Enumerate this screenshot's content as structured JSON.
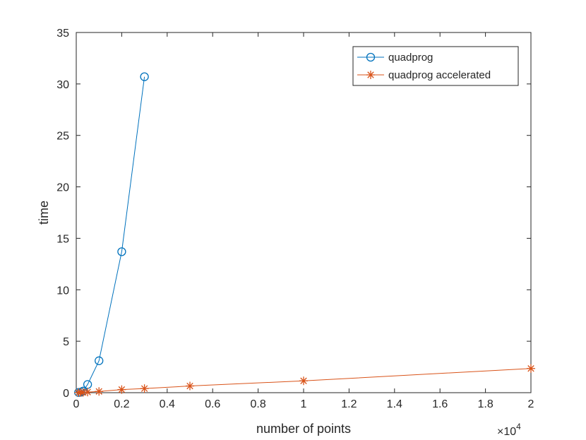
{
  "chart_data": {
    "type": "line",
    "xlabel": "number of points",
    "ylabel": "time",
    "xlim": [
      0,
      20000
    ],
    "ylim": [
      0,
      35
    ],
    "x_exponent_label": "×10",
    "x_exponent_power": "4",
    "x_ticks": [
      0,
      2000,
      4000,
      6000,
      8000,
      10000,
      12000,
      14000,
      16000,
      18000,
      20000
    ],
    "x_tick_labels": [
      "0",
      "0.2",
      "0.4",
      "0.6",
      "0.8",
      "1",
      "1.2",
      "1.4",
      "1.6",
      "1.8",
      "2"
    ],
    "y_ticks": [
      0,
      5,
      10,
      15,
      20,
      25,
      30,
      35
    ],
    "y_tick_labels": [
      "0",
      "5",
      "10",
      "15",
      "20",
      "25",
      "30",
      "35"
    ],
    "grid": false,
    "legend_position": "top-right",
    "series": [
      {
        "name": "quadprog",
        "color": "#0072BD",
        "marker": "circle",
        "x": [
          100,
          200,
          300,
          500,
          1000,
          2000,
          3000
        ],
        "y": [
          0.02,
          0.05,
          0.15,
          0.8,
          3.1,
          13.7,
          30.7
        ]
      },
      {
        "name": "quadprog accelerated",
        "color": "#D95319",
        "marker": "asterisk",
        "x": [
          100,
          200,
          300,
          500,
          1000,
          2000,
          3000,
          5000,
          10000,
          20000
        ],
        "y": [
          0.01,
          0.02,
          0.03,
          0.06,
          0.12,
          0.3,
          0.4,
          0.65,
          1.15,
          2.35
        ]
      }
    ]
  }
}
